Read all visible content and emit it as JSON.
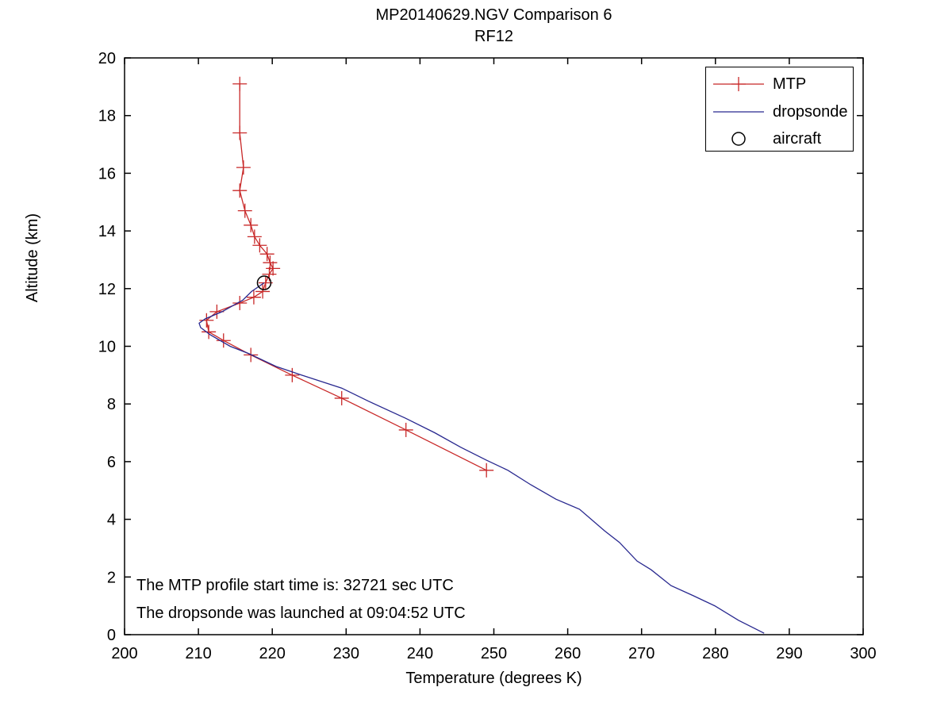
{
  "window": {
    "title": "MP20140629.NGV Comparison 6"
  },
  "chart_data": {
    "type": "line",
    "title": "MP20140629.NGV Comparison 6",
    "subtitle": "RF12",
    "xlabel": "Temperature (degrees K)",
    "ylabel": "Altitude (km)",
    "xlim": [
      200,
      300
    ],
    "ylim": [
      0,
      20
    ],
    "xticks": [
      200,
      210,
      220,
      230,
      240,
      250,
      260,
      270,
      280,
      290,
      300
    ],
    "yticks": [
      0,
      2,
      4,
      6,
      8,
      10,
      12,
      14,
      16,
      18,
      20
    ],
    "grid": false,
    "box": true,
    "legend": {
      "position": "top-right",
      "entries": [
        {
          "label": "MTP",
          "marker": "plus-line",
          "color": "#c82828"
        },
        {
          "label": "dropsonde",
          "marker": "line",
          "color": "#28288f"
        },
        {
          "label": "aircraft",
          "marker": "circle",
          "color": "#000000"
        }
      ]
    },
    "annotations": [
      "The MTP profile start time is: 32721 sec UTC",
      "The dropsonde was launched at 09:04:52 UTC"
    ],
    "series": [
      {
        "name": "MTP",
        "color": "#c82828",
        "marker": "plus",
        "x_units": "degrees K",
        "y_units": "km",
        "points": [
          [
            215.6,
            19.1
          ],
          [
            215.6,
            17.4
          ],
          [
            216.1,
            16.2
          ],
          [
            215.6,
            15.4
          ],
          [
            216.3,
            14.7
          ],
          [
            217.1,
            14.2
          ],
          [
            217.6,
            13.8
          ],
          [
            218.3,
            13.5
          ],
          [
            219.3,
            13.2
          ],
          [
            219.7,
            12.9
          ],
          [
            220.1,
            12.7
          ],
          [
            219.6,
            12.5
          ],
          [
            219.1,
            12.2
          ],
          [
            218.7,
            11.9
          ],
          [
            217.5,
            11.7
          ],
          [
            215.6,
            11.5
          ],
          [
            212.5,
            11.2
          ],
          [
            211.1,
            10.9
          ],
          [
            211.4,
            10.5
          ],
          [
            213.4,
            10.2
          ],
          [
            217.1,
            9.7
          ],
          [
            222.7,
            9.0
          ],
          [
            229.4,
            8.2
          ],
          [
            238.1,
            7.1
          ],
          [
            249.0,
            5.7
          ]
        ]
      },
      {
        "name": "dropsonde",
        "color": "#28288f",
        "marker": "none",
        "x_units": "degrees K",
        "y_units": "km",
        "points": [
          [
            218.9,
            12.2
          ],
          [
            217.2,
            11.9
          ],
          [
            216.0,
            11.6
          ],
          [
            213.2,
            11.2
          ],
          [
            210.9,
            10.95
          ],
          [
            210.1,
            10.8
          ],
          [
            210.3,
            10.65
          ],
          [
            211.6,
            10.4
          ],
          [
            214.3,
            10.0
          ],
          [
            216.8,
            9.75
          ],
          [
            220.5,
            9.3
          ],
          [
            224.0,
            9.0
          ],
          [
            229.4,
            8.55
          ],
          [
            233.0,
            8.1
          ],
          [
            238.1,
            7.5
          ],
          [
            242.0,
            7.0
          ],
          [
            245.5,
            6.5
          ],
          [
            249.0,
            6.05
          ],
          [
            251.9,
            5.7
          ],
          [
            255.0,
            5.2
          ],
          [
            258.4,
            4.7
          ],
          [
            261.6,
            4.35
          ],
          [
            265.0,
            3.6
          ],
          [
            267.0,
            3.2
          ],
          [
            269.4,
            2.55
          ],
          [
            271.3,
            2.25
          ],
          [
            274.0,
            1.7
          ],
          [
            277.0,
            1.35
          ],
          [
            279.9,
            1.0
          ],
          [
            283.1,
            0.5
          ],
          [
            286.6,
            0.05
          ]
        ]
      },
      {
        "name": "aircraft",
        "color": "#000000",
        "marker": "circle",
        "x_units": "degrees K",
        "y_units": "km",
        "points": [
          [
            218.9,
            12.2
          ]
        ]
      }
    ]
  }
}
